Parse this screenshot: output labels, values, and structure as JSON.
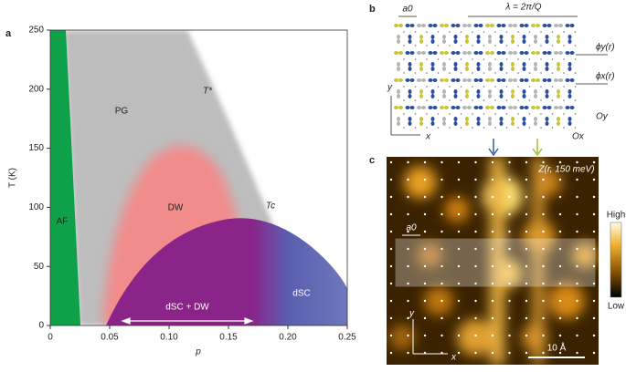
{
  "panel_a": {
    "label": "a",
    "xlabel": "p",
    "ylabel": "T (K)",
    "xlim": [
      0,
      0.25
    ],
    "ylim": [
      0,
      250
    ],
    "xticks": [
      0,
      0.05,
      {
        "value": 0.1,
        "label": "0.10"
      },
      0.15,
      {
        "value": 0.2,
        "label": "0.20"
      },
      0.25
    ],
    "yticks": [
      0,
      50,
      100,
      150,
      200,
      250
    ],
    "regions": {
      "af": "AF",
      "pg": "PG",
      "tstar": "T*",
      "dw": "DW",
      "tc": "Tc",
      "dsc_dw": "dSC + DW",
      "dsc": "dSC"
    }
  },
  "panel_b": {
    "label": "b",
    "a0": "a0",
    "lambda": "λ = 2π/Q",
    "phi_y": "ϕy(r)",
    "phi_x": "ϕx(r)",
    "oy": "Oy",
    "ox": "Ox",
    "y": "y",
    "x": "x"
  },
  "panel_c": {
    "label": "c",
    "title": "Z(r, 150 meV)",
    "a0": "a0",
    "high": "High",
    "low": "Low",
    "y": "y",
    "x": "x",
    "scale": "10 Å"
  }
}
